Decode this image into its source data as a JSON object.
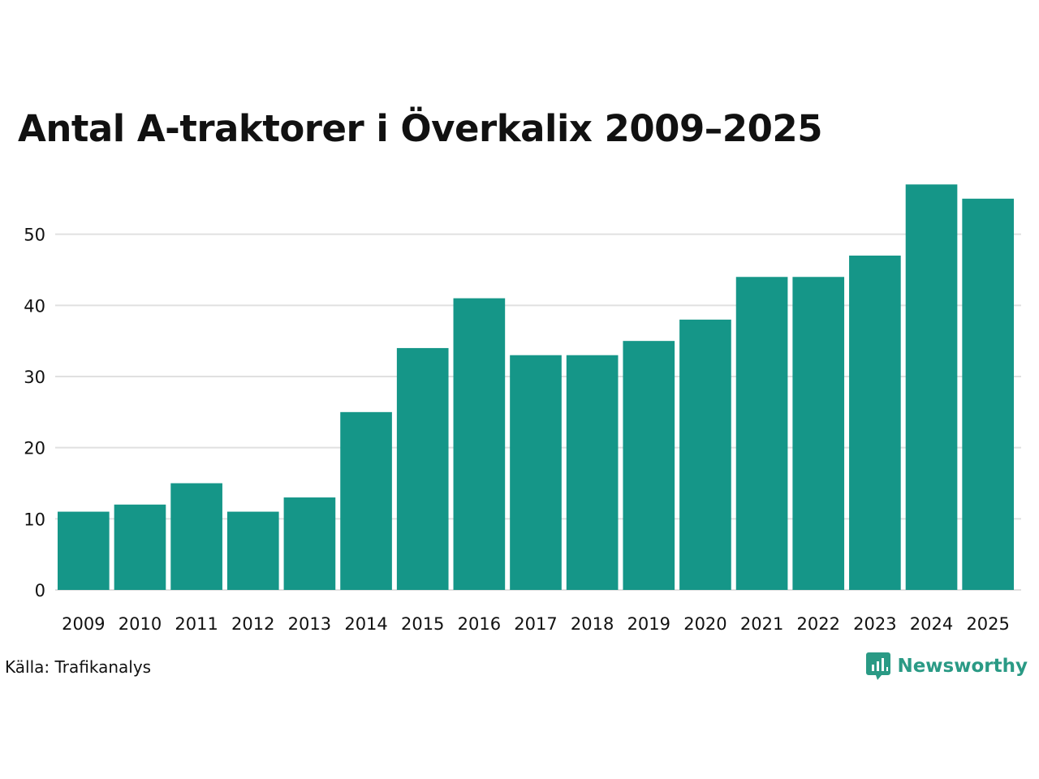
{
  "colors": {
    "bar": "#159688",
    "grid": "#e0e0e0",
    "text": "#111111",
    "brand": "#2a9a85"
  },
  "footer": {
    "source": "Källa: Trafikanalys",
    "brand_name": "Newsworthy",
    "brand_icon": "bar-chart-speech-bubble-icon"
  },
  "chart_data": {
    "type": "bar",
    "title": "Antal A-traktorer i Överkalix 2009–2025",
    "xlabel": "",
    "ylabel": "",
    "categories": [
      "2009",
      "2010",
      "2011",
      "2012",
      "2013",
      "2014",
      "2015",
      "2016",
      "2017",
      "2018",
      "2019",
      "2020",
      "2021",
      "2022",
      "2023",
      "2024",
      "2025"
    ],
    "values": [
      11,
      12,
      15,
      11,
      13,
      25,
      34,
      41,
      33,
      33,
      35,
      38,
      44,
      44,
      47,
      57,
      55
    ],
    "ylim": [
      0,
      60
    ],
    "yticks": [
      0,
      10,
      20,
      30,
      40,
      50
    ],
    "grid": true
  }
}
